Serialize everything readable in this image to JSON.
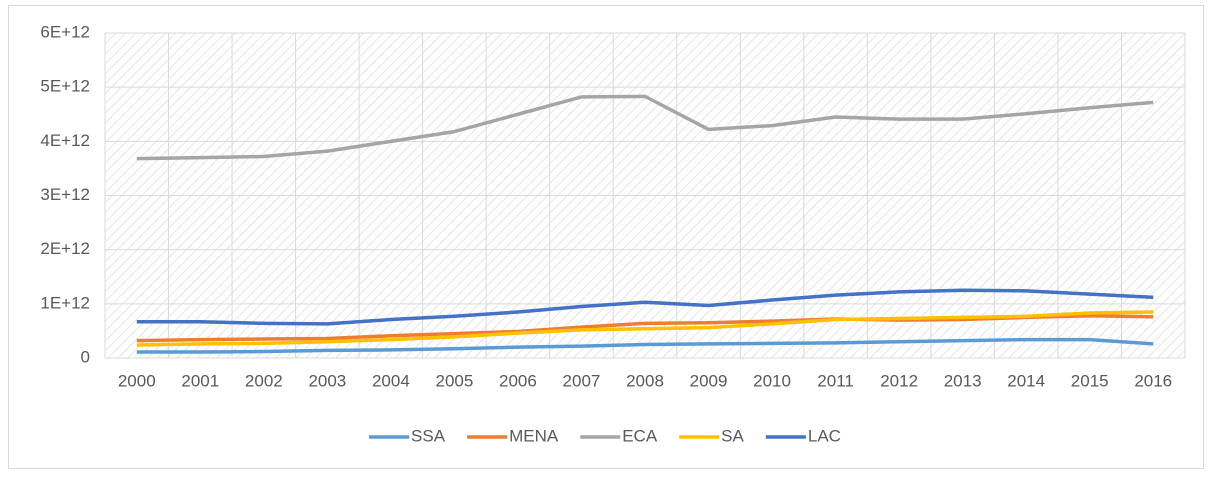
{
  "chart_data": {
    "type": "line",
    "categories": [
      "2000",
      "2001",
      "2002",
      "2003",
      "2004",
      "2005",
      "2006",
      "2007",
      "2008",
      "2009",
      "2010",
      "2011",
      "2012",
      "2013",
      "2014",
      "2015",
      "2016"
    ],
    "series": [
      {
        "name": "SSA",
        "color": "#5b9bd5",
        "values": [
          110000000000.0,
          110000000000.0,
          120000000000.0,
          140000000000.0,
          150000000000.0,
          170000000000.0,
          200000000000.0,
          220000000000.0,
          250000000000.0,
          260000000000.0,
          270000000000.0,
          280000000000.0,
          300000000000.0,
          320000000000.0,
          340000000000.0,
          340000000000.0,
          260000000000.0
        ]
      },
      {
        "name": "MENA",
        "color": "#ed7d31",
        "values": [
          320000000000.0,
          340000000000.0,
          350000000000.0,
          360000000000.0,
          410000000000.0,
          450000000000.0,
          490000000000.0,
          570000000000.0,
          640000000000.0,
          650000000000.0,
          680000000000.0,
          720000000000.0,
          700000000000.0,
          710000000000.0,
          750000000000.0,
          780000000000.0,
          760000000000.0
        ]
      },
      {
        "name": "ECA",
        "color": "#a5a5a5",
        "values": [
          3680000000000.0,
          3700000000000.0,
          3720000000000.0,
          3820000000000.0,
          4000000000000.0,
          4180000000000.0,
          4500000000000.0,
          4820000000000.0,
          4830000000000.0,
          4220000000000.0,
          4290000000000.0,
          4450000000000.0,
          4410000000000.0,
          4410000000000.0,
          4510000000000.0,
          4620000000000.0,
          4720000000000.0
        ]
      },
      {
        "name": "SA",
        "color": "#ffc000",
        "values": [
          240000000000.0,
          260000000000.0,
          270000000000.0,
          300000000000.0,
          340000000000.0,
          390000000000.0,
          460000000000.0,
          520000000000.0,
          540000000000.0,
          560000000000.0,
          630000000000.0,
          710000000000.0,
          730000000000.0,
          750000000000.0,
          770000000000.0,
          830000000000.0,
          850000000000.0
        ]
      },
      {
        "name": "LAC",
        "color": "#4472c4",
        "values": [
          670000000000.0,
          670000000000.0,
          640000000000.0,
          630000000000.0,
          710000000000.0,
          770000000000.0,
          850000000000.0,
          950000000000.0,
          1030000000000.0,
          970000000000.0,
          1070000000000.0,
          1160000000000.0,
          1220000000000.0,
          1250000000000.0,
          1240000000000.0,
          1180000000000.0,
          1120000000000.0
        ]
      }
    ],
    "ylim": [
      0,
      6000000000000.0
    ],
    "yticks": [
      0,
      {
        "value": 1000000000000.0,
        "label": "1E+12"
      },
      {
        "value": 2000000000000.0,
        "label": "2E+12"
      },
      {
        "value": 3000000000000.0,
        "label": "3E+12"
      },
      {
        "value": 4000000000000.0,
        "label": "4E+12"
      },
      {
        "value": 5000000000000.0,
        "label": "5E+12"
      },
      {
        "value": 6000000000000.0,
        "label": "6E+12"
      }
    ],
    "grid": true,
    "legend": "bottom"
  }
}
